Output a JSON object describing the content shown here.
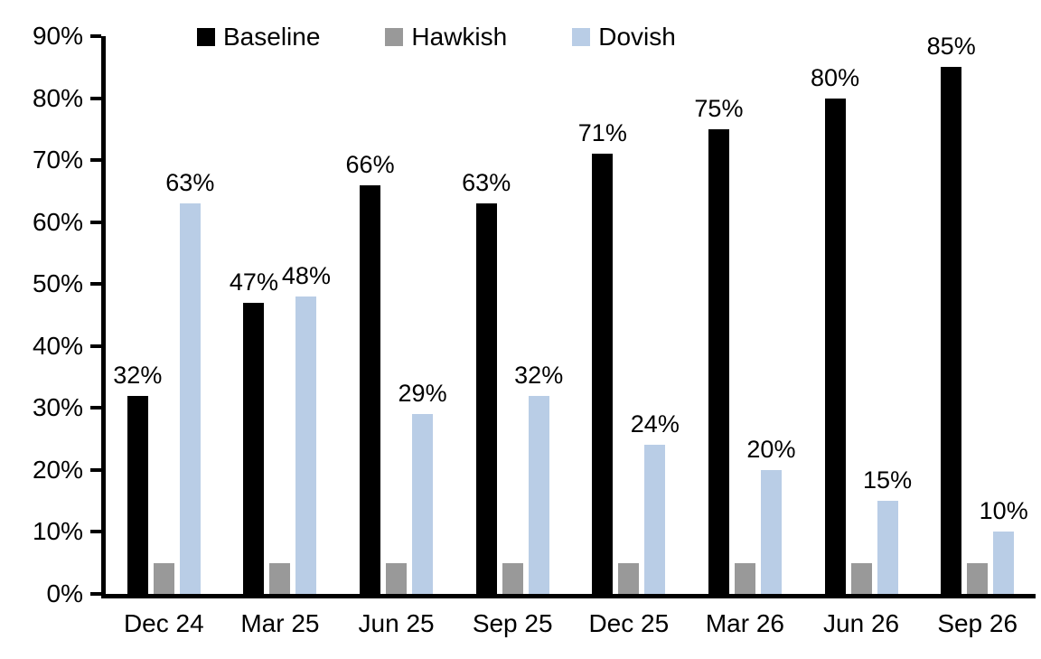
{
  "chart_data": {
    "type": "bar",
    "title": "",
    "xlabel": "",
    "ylabel": "",
    "categories": [
      "Dec 24",
      "Mar 25",
      "Jun 25",
      "Sep 25",
      "Dec 25",
      "Mar 26",
      "Jun 26",
      "Sep 26"
    ],
    "series": [
      {
        "name": "Baseline",
        "color": "#000000",
        "values": [
          32,
          47,
          66,
          63,
          71,
          75,
          80,
          85
        ],
        "show_labels": true,
        "data_labels": [
          "32%",
          "47%",
          "66%",
          "63%",
          "71%",
          "75%",
          "80%",
          "85%"
        ]
      },
      {
        "name": "Hawkish",
        "color": "#999999",
        "values": [
          5,
          5,
          5,
          5,
          5,
          5,
          5,
          5
        ],
        "show_labels": false,
        "data_labels": []
      },
      {
        "name": "Dovish",
        "color": "#B9CDE6",
        "values": [
          63,
          48,
          29,
          32,
          24,
          20,
          15,
          10
        ],
        "show_labels": true,
        "data_labels": [
          "63%",
          "48%",
          "29%",
          "32%",
          "24%",
          "20%",
          "15%",
          "10%"
        ]
      }
    ],
    "ylim": [
      0,
      90
    ],
    "yticks": [
      {
        "value": 0,
        "label": "0%"
      },
      {
        "value": 10,
        "label": "10%"
      },
      {
        "value": 20,
        "label": "20%"
      },
      {
        "value": 30,
        "label": "30%"
      },
      {
        "value": 40,
        "label": "40%"
      },
      {
        "value": 50,
        "label": "50%"
      },
      {
        "value": 60,
        "label": "60%"
      },
      {
        "value": 70,
        "label": "70%"
      },
      {
        "value": 80,
        "label": "80%"
      },
      {
        "value": 90,
        "label": "90%"
      }
    ],
    "grid": false,
    "legend_position": "top",
    "axis_color": "#000000",
    "background_color": "#FFFFFF"
  }
}
